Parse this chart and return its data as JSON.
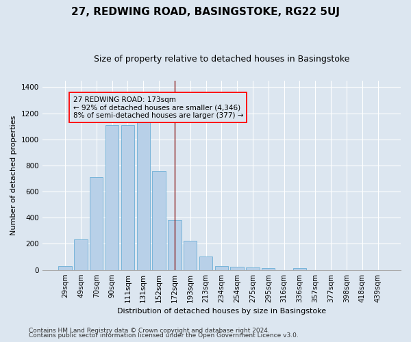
{
  "title": "27, REDWING ROAD, BASINGSTOKE, RG22 5UJ",
  "subtitle": "Size of property relative to detached houses in Basingstoke",
  "xlabel": "Distribution of detached houses by size in Basingstoke",
  "ylabel": "Number of detached properties",
  "footnote1": "Contains HM Land Registry data © Crown copyright and database right 2024.",
  "footnote2": "Contains public sector information licensed under the Open Government Licence v3.0.",
  "annotation_line1": "27 REDWING ROAD: 173sqm",
  "annotation_line2": "← 92% of detached houses are smaller (4,346)",
  "annotation_line3": "8% of semi-detached houses are larger (377) →",
  "bar_labels": [
    "29sqm",
    "49sqm",
    "70sqm",
    "90sqm",
    "111sqm",
    "131sqm",
    "152sqm",
    "172sqm",
    "193sqm",
    "213sqm",
    "234sqm",
    "254sqm",
    "275sqm",
    "295sqm",
    "316sqm",
    "336sqm",
    "357sqm",
    "377sqm",
    "398sqm",
    "418sqm",
    "439sqm"
  ],
  "bar_values": [
    30,
    235,
    710,
    1110,
    1110,
    1130,
    760,
    380,
    225,
    105,
    30,
    22,
    20,
    15,
    0,
    15,
    0,
    0,
    0,
    0,
    0
  ],
  "bar_color": "#b8d0e8",
  "bar_edge_color": "#6baed6",
  "vline_x_index": 7,
  "vline_color": "#8b1a1a",
  "ylim": [
    0,
    1450
  ],
  "yticks": [
    0,
    200,
    400,
    600,
    800,
    1000,
    1200,
    1400
  ],
  "bg_color": "#dce6f0",
  "grid_color": "#ffffff",
  "title_fontsize": 11,
  "subtitle_fontsize": 9,
  "axis_label_fontsize": 8,
  "tick_fontsize": 7.5,
  "annotation_fontsize": 7.5,
  "footnote_fontsize": 6.5
}
